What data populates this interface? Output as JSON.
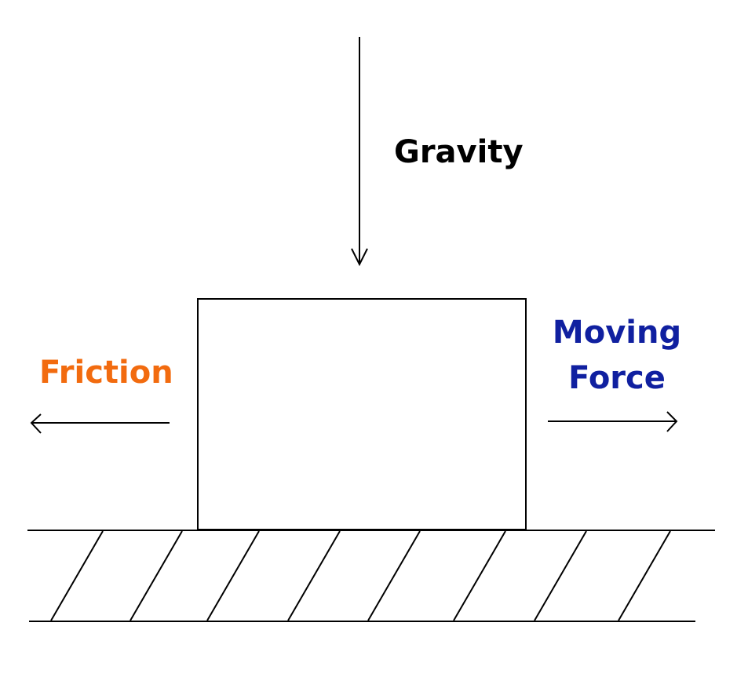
{
  "labels": {
    "gravity": "Gravity",
    "friction": "Friction",
    "moving_line1": "Moving",
    "moving_line2": "Force"
  },
  "colors": {
    "gravity": "#000000",
    "friction": "#f26b0f",
    "moving_force": "#1020a0",
    "stroke": "#000000"
  }
}
